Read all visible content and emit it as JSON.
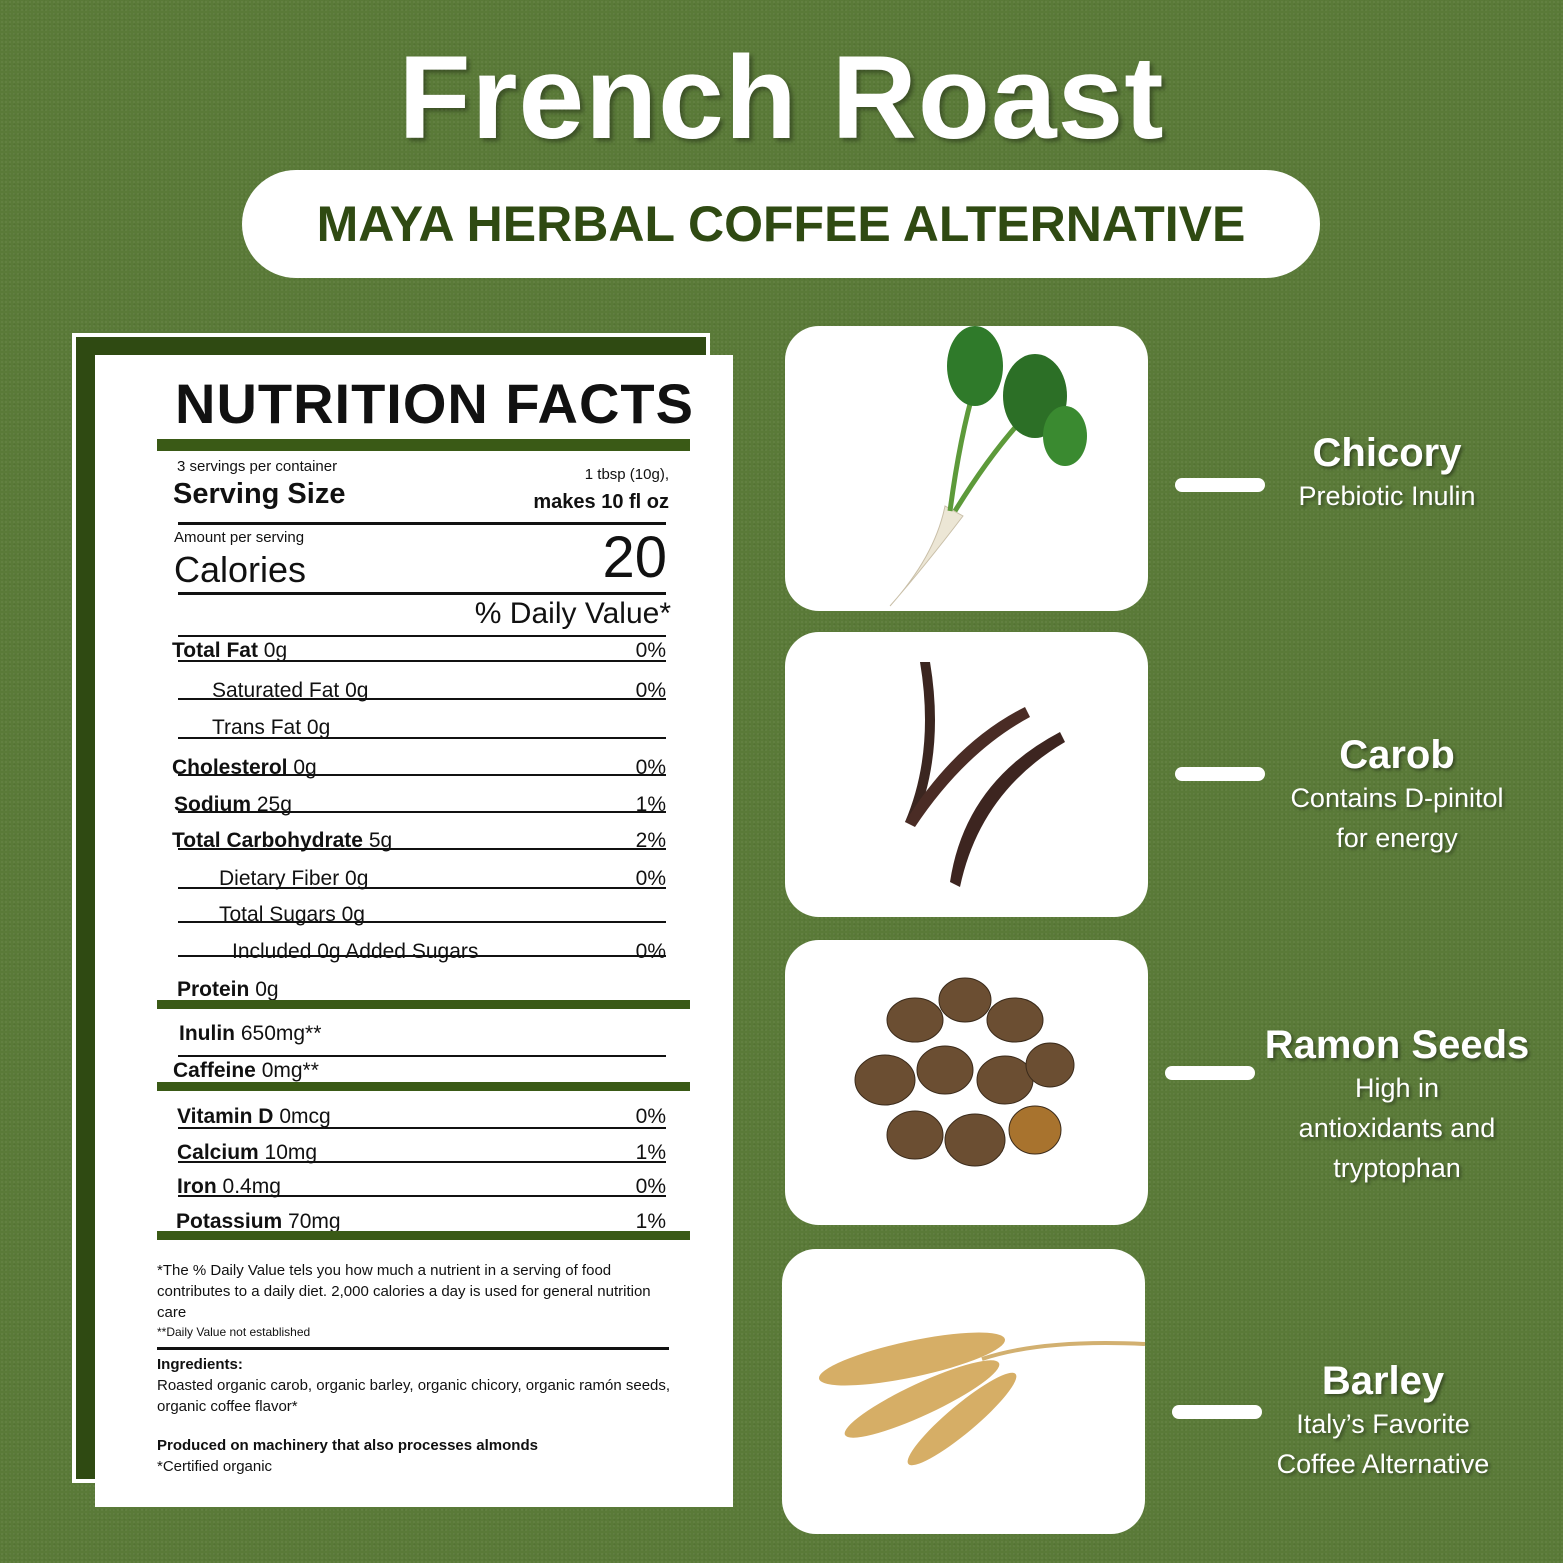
{
  "title": "French Roast",
  "subtitle": "MAYA HERBAL COFFEE ALTERNATIVE",
  "label": {
    "heading": "NUTRITION FACTS",
    "servings": "3 servings per container",
    "serving_size_label": "Serving Size",
    "serving_size_line1": "1 tbsp (10g),",
    "serving_size_line2": "makes 10 fl oz",
    "amount_per_serving": "Amount per serving",
    "calories_label": "Calories",
    "calories": "20",
    "dv_header": "% Daily Value*",
    "rows": [
      {
        "name": "Total Fat",
        "amount": "0g",
        "dv": "0%"
      },
      {
        "name": "Saturated Fat",
        "amount": "0g",
        "dv": "0%"
      },
      {
        "name": "Trans Fat",
        "amount": "0g",
        "dv": ""
      },
      {
        "name": "Cholesterol",
        "amount": "0g",
        "dv": "0%"
      },
      {
        "name": "Sodium",
        "amount": "25g",
        "dv": "1%"
      },
      {
        "name": "Total Carbohydrate",
        "amount": "5g",
        "dv": "2%"
      },
      {
        "name": "Dietary Fiber",
        "amount": "0g",
        "dv": "0%"
      },
      {
        "name": "Total Sugars",
        "amount": "0g",
        "dv": ""
      },
      {
        "name": "Included 0g Added Sugars",
        "amount": "",
        "dv": "0%"
      },
      {
        "name": "Protein",
        "amount": "0g",
        "dv": ""
      },
      {
        "name": "Inulin",
        "amount": "650mg**",
        "dv": ""
      },
      {
        "name": "Caffeine",
        "amount": "0mg**",
        "dv": ""
      },
      {
        "name": "Vitamin D",
        "amount": "0mcg",
        "dv": "0%"
      },
      {
        "name": "Calcium",
        "amount": "10mg",
        "dv": "1%"
      },
      {
        "name": "Iron",
        "amount": "0.4mg",
        "dv": "0%"
      },
      {
        "name": "Potassium",
        "amount": "70mg",
        "dv": "1%"
      }
    ],
    "footnote1": "*The %  Daily Value tels you how much a nutrient in a serving of food contributes to a daily diet. 2,000 calories a day is used for general nutrition care",
    "footnote2": "**Daily Value not established",
    "ingredients_label": "Ingredients:",
    "ingredients": "Roasted organic carob, organic barley, organic chicory, organic ramón seeds, organic coffee flavor*",
    "allergen": "Produced on machinery that also processes almonds",
    "certified": "*Certified organic"
  },
  "ingredients_panel": [
    {
      "name": "Chicory",
      "desc": [
        "Prebiotic Inulin"
      ]
    },
    {
      "name": "Carob",
      "desc": [
        "Contains D-pinitol",
        "for energy"
      ]
    },
    {
      "name": "Ramon Seeds",
      "desc": [
        "High in",
        "antioxidants and",
        "tryptophan"
      ]
    },
    {
      "name": "Barley",
      "desc": [
        "Italy’s Favorite",
        "Coffee Alternative"
      ]
    }
  ],
  "colors": {
    "background": "#5a7a38",
    "label_accent": "#3a5a16",
    "subtitle_text": "#2f4a12"
  }
}
